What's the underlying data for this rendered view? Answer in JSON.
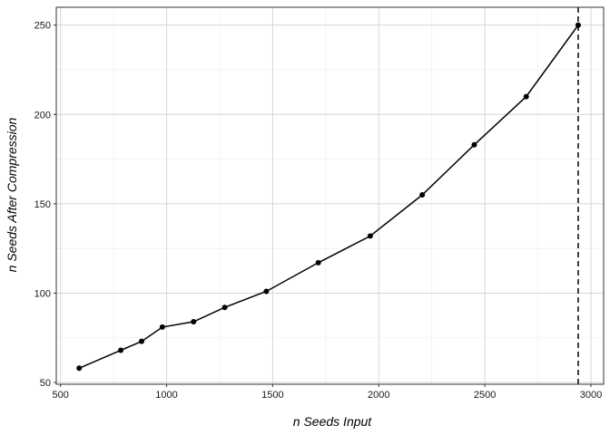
{
  "chart_data": {
    "type": "line",
    "title": "",
    "xlabel": "n Seeds Input",
    "ylabel": "n Seeds After Compression",
    "xlim": [
      480,
      3060
    ],
    "ylim": [
      49,
      260
    ],
    "x_ticks": [
      500,
      1000,
      1500,
      2000,
      2500,
      3000
    ],
    "y_ticks": [
      50,
      100,
      150,
      200,
      250
    ],
    "grid": true,
    "legend": "none",
    "series": [
      {
        "x": [
          588,
          784,
          882,
          980,
          1127,
          1274,
          1470,
          1715,
          1960,
          2205,
          2450,
          2695,
          2940
        ],
        "y": [
          58,
          68,
          73,
          81,
          84,
          92,
          101,
          117,
          132,
          155,
          183,
          210,
          250
        ],
        "color": "#000000"
      }
    ],
    "vline": {
      "x": 2940,
      "style": "dashed",
      "color": "#000000"
    }
  }
}
